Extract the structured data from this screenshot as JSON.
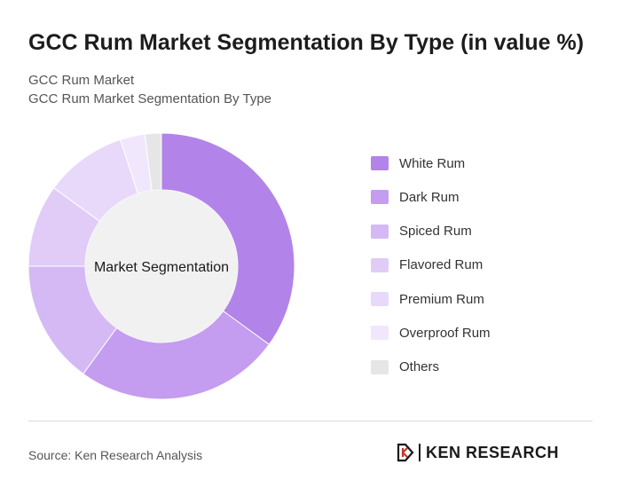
{
  "header": {
    "title": "GCC Rum Market Segmentation By Type (in value %)",
    "subtitle_1": "GCC Rum Market",
    "subtitle_2": "GCC Rum Market Segmentation By Type"
  },
  "chart_data": {
    "type": "pie",
    "variant": "donut",
    "center_label": "Market Segmentation",
    "legend_position": "right",
    "categories": [
      "White Rum",
      "Dark Rum",
      "Spiced Rum",
      "Flavored Rum",
      "Premium Rum",
      "Overproof Rum",
      "Others"
    ],
    "values": [
      35,
      25,
      15,
      10,
      10,
      3,
      2
    ],
    "colors": [
      "#b283e8",
      "#c49cf0",
      "#d5b9f5",
      "#e1ccf8",
      "#e8d9fa",
      "#f1e7fc",
      "#e6e6e6"
    ]
  },
  "footer": {
    "source": "Source: Ken Research Analysis",
    "logo_text": "KEN RESEARCH"
  }
}
